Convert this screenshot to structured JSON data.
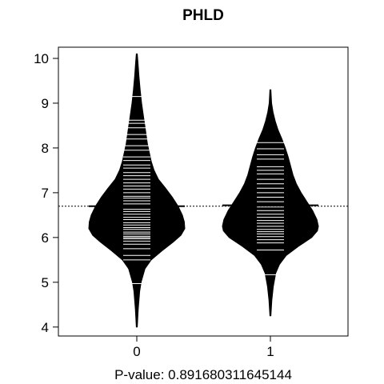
{
  "chart_data": {
    "type": "beanplot",
    "title": "PHLD",
    "xlabel": "P-value: 0.891680311645144",
    "ylabel": "",
    "categories": [
      "0",
      "1"
    ],
    "ylim": [
      3.8,
      10.25
    ],
    "yticks": [
      4,
      5,
      6,
      7,
      8,
      9,
      10
    ],
    "overall_mean": 6.7,
    "grid": false,
    "legend": "none",
    "colors": {
      "bean_fill": "#000000",
      "bean_lines": "#ffffff",
      "axis": "#000000",
      "background": "#ffffff"
    },
    "beans": [
      {
        "category": "0",
        "mean": 6.7,
        "y_min": 4.0,
        "y_max": 10.1,
        "density": [
          {
            "y": 4.0,
            "w": 0.01
          },
          {
            "y": 4.4,
            "w": 0.03
          },
          {
            "y": 4.8,
            "w": 0.06
          },
          {
            "y": 5.0,
            "w": 0.09
          },
          {
            "y": 5.3,
            "w": 0.17
          },
          {
            "y": 5.5,
            "w": 0.3
          },
          {
            "y": 5.7,
            "w": 0.52
          },
          {
            "y": 5.9,
            "w": 0.76
          },
          {
            "y": 6.05,
            "w": 0.92
          },
          {
            "y": 6.2,
            "w": 1.0
          },
          {
            "y": 6.35,
            "w": 0.99
          },
          {
            "y": 6.5,
            "w": 0.95
          },
          {
            "y": 6.7,
            "w": 0.86
          },
          {
            "y": 6.9,
            "w": 0.74
          },
          {
            "y": 7.1,
            "w": 0.6
          },
          {
            "y": 7.3,
            "w": 0.45
          },
          {
            "y": 7.5,
            "w": 0.36
          },
          {
            "y": 7.7,
            "w": 0.3
          },
          {
            "y": 7.9,
            "w": 0.26
          },
          {
            "y": 8.1,
            "w": 0.22
          },
          {
            "y": 8.4,
            "w": 0.18
          },
          {
            "y": 8.7,
            "w": 0.14
          },
          {
            "y": 9.0,
            "w": 0.1
          },
          {
            "y": 9.3,
            "w": 0.07
          },
          {
            "y": 9.6,
            "w": 0.045
          },
          {
            "y": 9.9,
            "w": 0.025
          },
          {
            "y": 10.1,
            "w": 0.01
          }
        ],
        "points": [
          4.97,
          5.5,
          5.6,
          5.75,
          5.85,
          5.92,
          5.97,
          6.0,
          6.03,
          6.08,
          6.12,
          6.18,
          6.22,
          6.28,
          6.33,
          6.4,
          6.45,
          6.52,
          6.58,
          6.63,
          6.75,
          6.82,
          6.88,
          6.92,
          7.0,
          7.08,
          7.15,
          7.22,
          7.3,
          7.38,
          7.45,
          7.55,
          7.62,
          7.72,
          7.8,
          7.95,
          8.05,
          8.2,
          8.3,
          8.45,
          8.55,
          8.62,
          9.15
        ]
      },
      {
        "category": "1",
        "mean": 6.72,
        "y_min": 4.25,
        "y_max": 9.3,
        "density": [
          {
            "y": 4.25,
            "w": 0.01
          },
          {
            "y": 4.6,
            "w": 0.03
          },
          {
            "y": 4.9,
            "w": 0.06
          },
          {
            "y": 5.2,
            "w": 0.11
          },
          {
            "y": 5.4,
            "w": 0.19
          },
          {
            "y": 5.6,
            "w": 0.33
          },
          {
            "y": 5.8,
            "w": 0.58
          },
          {
            "y": 6.0,
            "w": 0.86
          },
          {
            "y": 6.15,
            "w": 0.98
          },
          {
            "y": 6.25,
            "w": 1.0
          },
          {
            "y": 6.4,
            "w": 0.97
          },
          {
            "y": 6.6,
            "w": 0.88
          },
          {
            "y": 6.8,
            "w": 0.76
          },
          {
            "y": 7.0,
            "w": 0.64
          },
          {
            "y": 7.2,
            "w": 0.54
          },
          {
            "y": 7.4,
            "w": 0.47
          },
          {
            "y": 7.6,
            "w": 0.42
          },
          {
            "y": 7.8,
            "w": 0.37
          },
          {
            "y": 8.0,
            "w": 0.31
          },
          {
            "y": 8.2,
            "w": 0.24
          },
          {
            "y": 8.4,
            "w": 0.16
          },
          {
            "y": 8.6,
            "w": 0.1
          },
          {
            "y": 8.8,
            "w": 0.055
          },
          {
            "y": 9.0,
            "w": 0.025
          },
          {
            "y": 9.3,
            "w": 0.01
          }
        ],
        "points": [
          5.17,
          5.72,
          5.88,
          5.95,
          6.02,
          6.08,
          6.13,
          6.18,
          6.25,
          6.32,
          6.38,
          6.45,
          6.52,
          6.6,
          6.68,
          6.8,
          6.9,
          7.0,
          7.1,
          7.2,
          7.3,
          7.42,
          7.5,
          7.58,
          7.75,
          7.85,
          7.98,
          8.12
        ]
      }
    ]
  }
}
